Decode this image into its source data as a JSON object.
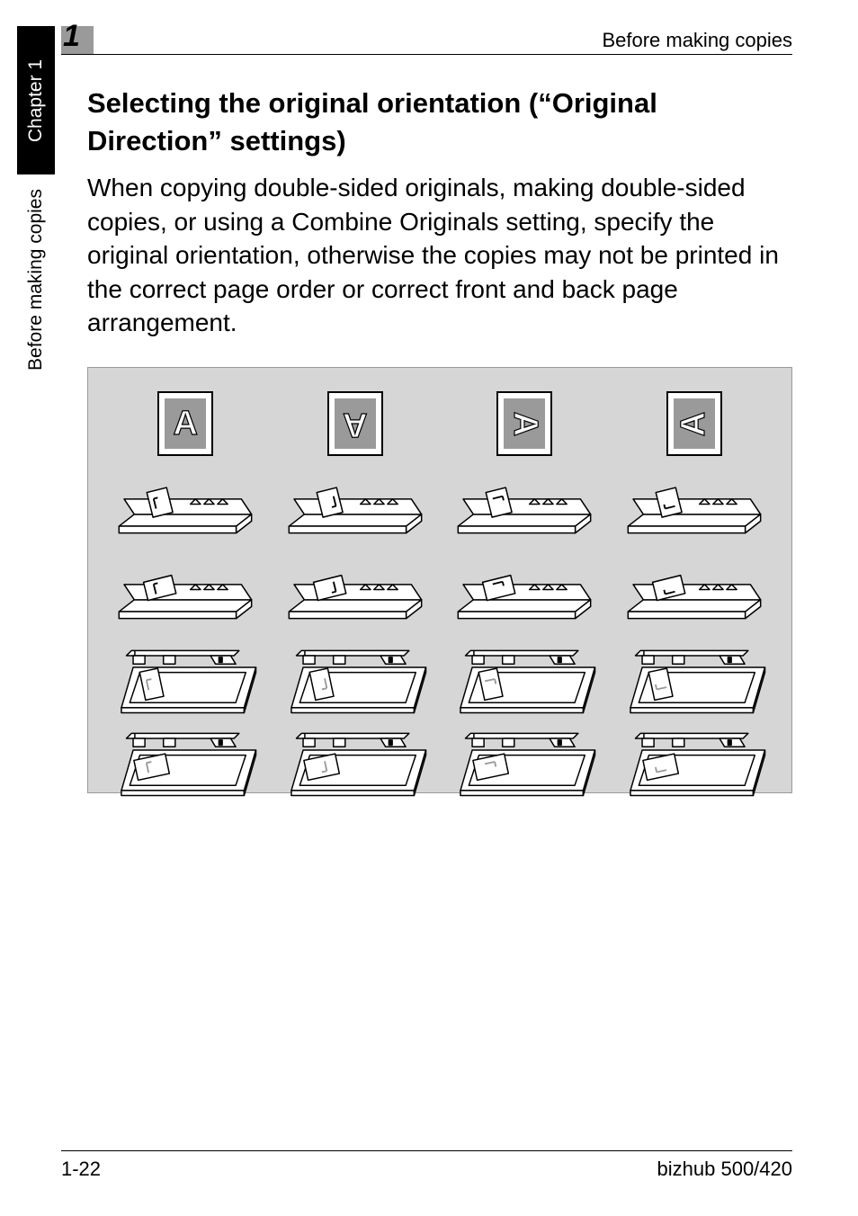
{
  "sidebar": {
    "chapter_label": "Chapter 1",
    "section_label": "Before making copies"
  },
  "header": {
    "number": "1",
    "right_text": "Before making copies"
  },
  "content": {
    "heading": "Selecting the original orientation (“Original Direction” settings)",
    "paragraph": "When copying double-sided originals, making double-sided copies, or using a Combine Originals setting, specify the original orientation, otherwise the copies may not be printed in the correct page order or correct front and back page arrangement."
  },
  "diagram": {
    "orientation_letter": "A",
    "rotations_deg": [
      0,
      180,
      90,
      270
    ],
    "colors": {
      "panel_bg": "#d6d6d6",
      "icon_fill": "#9a9a9a",
      "stroke": "#000000",
      "page_white": "#ffffff"
    }
  },
  "footer": {
    "page_number": "1-22",
    "model": "bizhub 500/420"
  }
}
